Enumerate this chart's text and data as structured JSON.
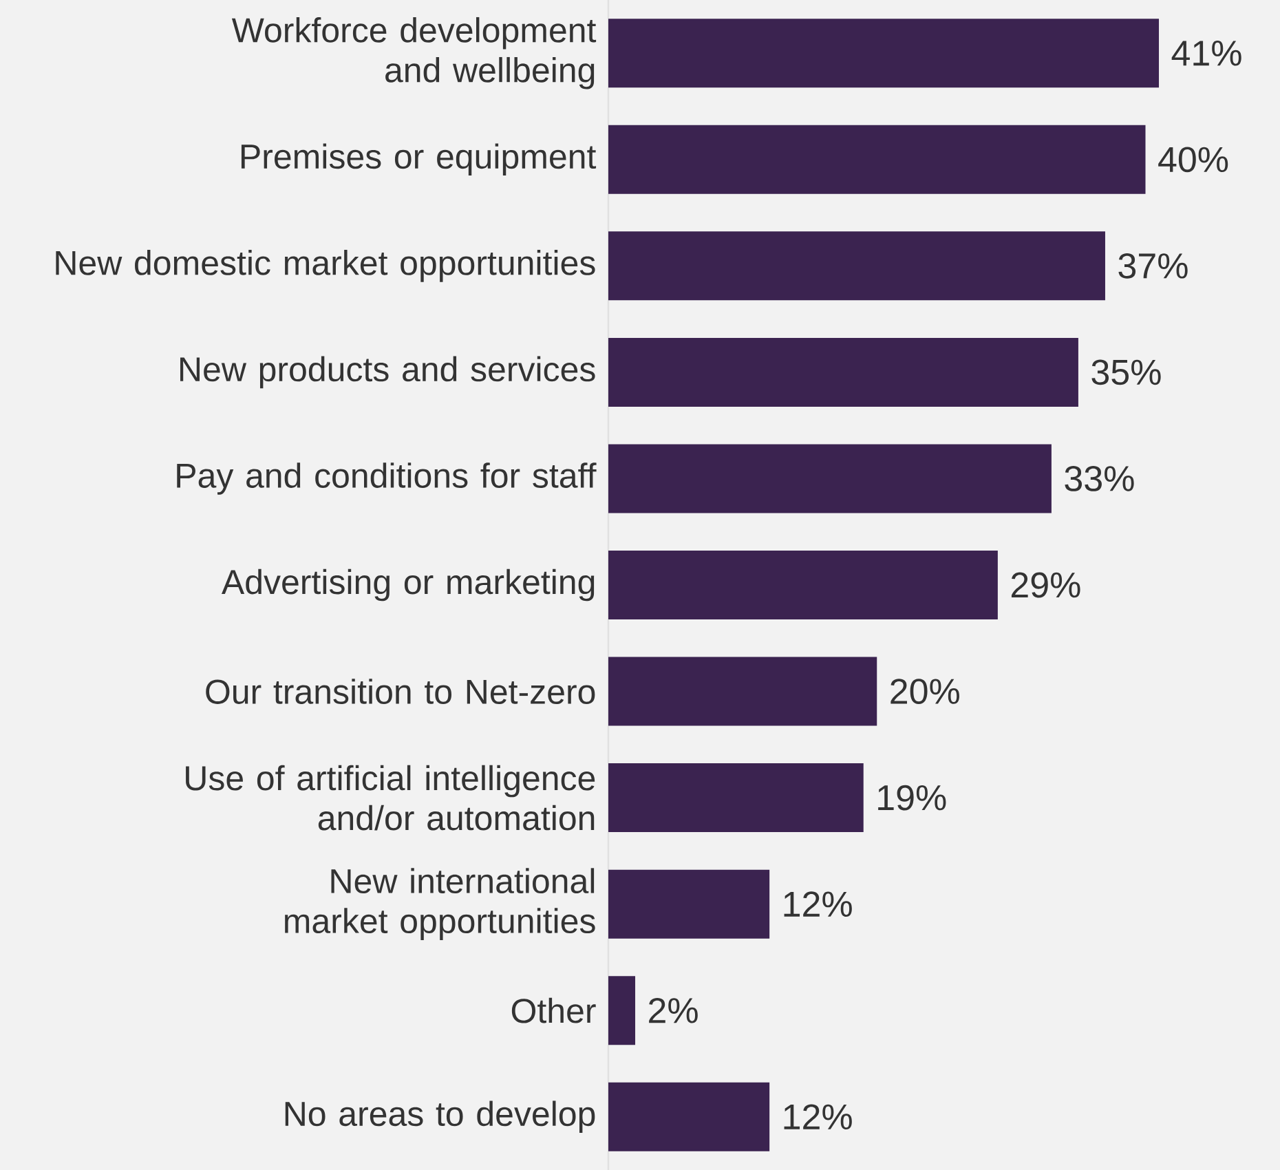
{
  "chart_data": {
    "type": "bar",
    "orientation": "horizontal",
    "categories": [
      "Workforce development and wellbeing",
      "Premises or equipment",
      "New domestic market opportunities",
      "New products and services",
      "Pay and conditions for staff",
      "Advertising or marketing",
      "Our transition to Net-zero",
      "Use of artificial intelligence and/or automation",
      "New international market opportunities",
      "Other",
      "No areas to develop"
    ],
    "values": [
      41,
      40,
      37,
      35,
      33,
      29,
      20,
      19,
      12,
      2,
      12
    ],
    "value_labels": [
      "41%",
      "40%",
      "37%",
      "35%",
      "33%",
      "29%",
      "20%",
      "19%",
      "12%",
      "2%",
      "12%"
    ],
    "color": "#3b2350"
  }
}
